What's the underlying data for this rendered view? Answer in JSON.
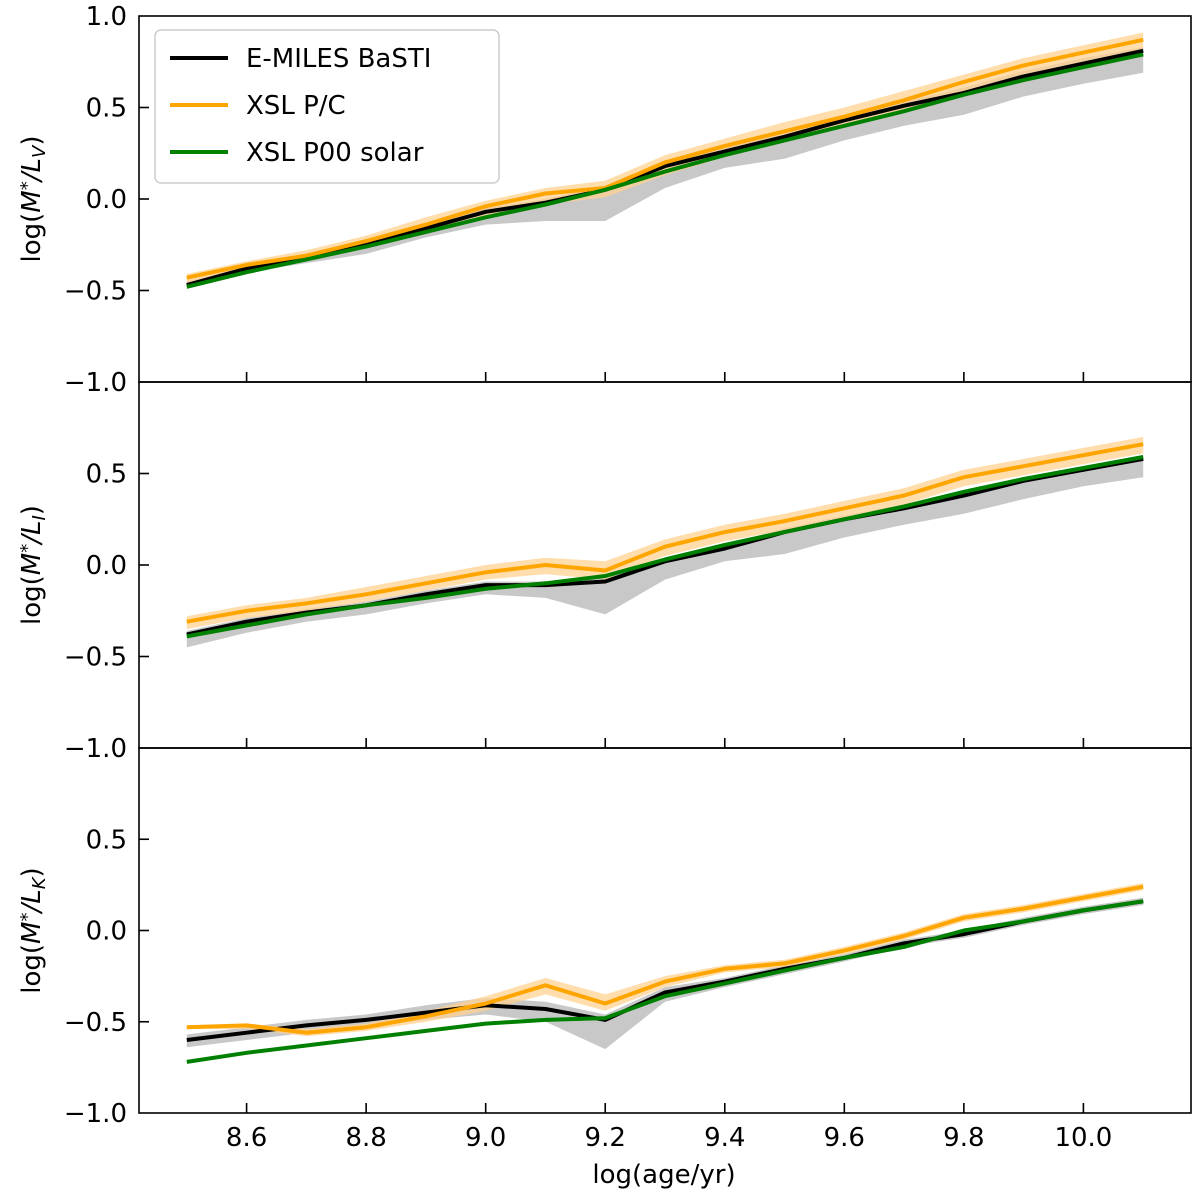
{
  "chart_data": {
    "type": "line",
    "xlabel": "log(age/yr)",
    "x_ticks": [
      "8.6",
      "8.8",
      "9.0",
      "9.2",
      "9.4",
      "9.6",
      "9.8",
      "10.0"
    ],
    "x_tick_values": [
      8.6,
      8.8,
      9.0,
      9.2,
      9.4,
      9.6,
      9.8,
      10.0
    ],
    "xlim": [
      8.42,
      10.18
    ],
    "ylim": [
      -1.0,
      1.0
    ],
    "y_ticks": [
      "1.0",
      "0.5",
      "0.0",
      "−0.5",
      "−1.0"
    ],
    "y_tick_values": [
      1.0,
      0.5,
      0.0,
      -0.5,
      -1.0
    ],
    "grid": false,
    "legend": {
      "placement": "top-left",
      "entries": [
        {
          "label": "E-MILES BaSTI",
          "color": "#000000"
        },
        {
          "label": "XSL P/C",
          "color": "#ffa500"
        },
        {
          "label": "XSL P00 solar",
          "color": "#008000"
        }
      ]
    },
    "x": [
      8.5,
      8.6,
      8.7,
      8.8,
      8.9,
      9.0,
      9.1,
      9.2,
      9.3,
      9.4,
      9.5,
      9.6,
      9.7,
      9.8,
      9.9,
      10.0,
      10.1
    ],
    "panels": [
      {
        "ylabel": "log(M*/L_V)",
        "ylabel_main": "log(",
        "ylabel_M": "M",
        "ylabel_star": "*",
        "ylabel_slash": "/",
        "ylabel_L": "L",
        "ylabel_sub": "V",
        "ylabel_end": ")",
        "show_y_top_tick": true,
        "series": [
          {
            "name": "E-MILES BaSTI",
            "color": "#000000",
            "band_color": "#b0b0b0",
            "values": [
              -0.47,
              -0.38,
              -0.32,
              -0.25,
              -0.16,
              -0.07,
              -0.02,
              0.05,
              0.18,
              0.26,
              0.34,
              0.43,
              0.51,
              0.58,
              0.67,
              0.74,
              0.81
            ],
            "band_lower": [
              -0.49,
              -0.4,
              -0.35,
              -0.3,
              -0.21,
              -0.14,
              -0.12,
              -0.12,
              0.06,
              0.17,
              0.22,
              0.32,
              0.4,
              0.46,
              0.56,
              0.63,
              0.69
            ],
            "band_upper": [
              -0.45,
              -0.37,
              -0.31,
              -0.23,
              -0.14,
              -0.05,
              0.0,
              0.07,
              0.2,
              0.28,
              0.36,
              0.45,
              0.53,
              0.61,
              0.7,
              0.77,
              0.83
            ]
          },
          {
            "name": "XSL P/C",
            "color": "#ffa500",
            "band_color": "#ffd290",
            "values": [
              -0.43,
              -0.36,
              -0.31,
              -0.23,
              -0.14,
              -0.04,
              0.03,
              0.06,
              0.2,
              0.29,
              0.37,
              0.45,
              0.54,
              0.64,
              0.73,
              0.8,
              0.87
            ],
            "band_lower": [
              -0.46,
              -0.39,
              -0.34,
              -0.27,
              -0.18,
              -0.09,
              -0.03,
              0.01,
              0.13,
              0.23,
              0.31,
              0.4,
              0.48,
              0.58,
              0.67,
              0.74,
              0.81
            ],
            "band_upper": [
              -0.41,
              -0.34,
              -0.28,
              -0.2,
              -0.1,
              -0.01,
              0.06,
              0.1,
              0.24,
              0.33,
              0.42,
              0.5,
              0.59,
              0.68,
              0.77,
              0.84,
              0.91
            ]
          },
          {
            "name": "XSL P00 solar",
            "color": "#008000",
            "values": [
              -0.48,
              -0.4,
              -0.33,
              -0.26,
              -0.18,
              -0.1,
              -0.03,
              0.05,
              0.15,
              0.24,
              0.32,
              0.4,
              0.48,
              0.57,
              0.65,
              0.72,
              0.79
            ]
          }
        ]
      },
      {
        "ylabel": "log(M*/L_I)",
        "ylabel_main": "log(",
        "ylabel_M": "M",
        "ylabel_star": "*",
        "ylabel_slash": "/",
        "ylabel_L": "L",
        "ylabel_sub": "I",
        "ylabel_end": ")",
        "show_y_top_tick": false,
        "series": [
          {
            "name": "E-MILES BaSTI",
            "color": "#000000",
            "band_color": "#b0b0b0",
            "values": [
              -0.38,
              -0.31,
              -0.26,
              -0.22,
              -0.16,
              -0.11,
              -0.11,
              -0.09,
              0.02,
              0.09,
              0.18,
              0.25,
              0.31,
              0.38,
              0.46,
              0.52,
              0.58
            ],
            "band_lower": [
              -0.45,
              -0.37,
              -0.31,
              -0.27,
              -0.21,
              -0.16,
              -0.18,
              -0.27,
              -0.08,
              0.02,
              0.06,
              0.15,
              0.22,
              0.28,
              0.36,
              0.43,
              0.48
            ],
            "band_upper": [
              -0.36,
              -0.29,
              -0.24,
              -0.2,
              -0.14,
              -0.09,
              -0.09,
              -0.07,
              0.04,
              0.11,
              0.2,
              0.27,
              0.33,
              0.4,
              0.48,
              0.54,
              0.6
            ]
          },
          {
            "name": "XSL P/C",
            "color": "#ffa500",
            "band_color": "#ffd290",
            "values": [
              -0.31,
              -0.25,
              -0.21,
              -0.16,
              -0.1,
              -0.04,
              0.0,
              -0.03,
              0.1,
              0.18,
              0.24,
              0.31,
              0.38,
              0.48,
              0.54,
              0.6,
              0.66
            ],
            "band_lower": [
              -0.35,
              -0.29,
              -0.25,
              -0.2,
              -0.14,
              -0.08,
              -0.05,
              -0.08,
              0.05,
              0.13,
              0.19,
              0.26,
              0.33,
              0.43,
              0.49,
              0.55,
              0.61
            ],
            "band_upper": [
              -0.28,
              -0.22,
              -0.18,
              -0.12,
              -0.06,
              0.0,
              0.04,
              0.02,
              0.14,
              0.22,
              0.28,
              0.35,
              0.42,
              0.52,
              0.58,
              0.64,
              0.7
            ]
          },
          {
            "name": "XSL P00 solar",
            "color": "#008000",
            "values": [
              -0.39,
              -0.33,
              -0.27,
              -0.22,
              -0.18,
              -0.13,
              -0.1,
              -0.06,
              0.03,
              0.11,
              0.18,
              0.25,
              0.32,
              0.4,
              0.47,
              0.53,
              0.59
            ]
          }
        ]
      },
      {
        "ylabel": "log(M*/L_K)",
        "ylabel_main": "log(",
        "ylabel_M": "M",
        "ylabel_star": "*",
        "ylabel_slash": "/",
        "ylabel_L": "L",
        "ylabel_sub": "K",
        "ylabel_end": ")",
        "show_y_top_tick": false,
        "series": [
          {
            "name": "E-MILES BaSTI",
            "color": "#000000",
            "band_color": "#b0b0b0",
            "values": [
              -0.6,
              -0.56,
              -0.52,
              -0.49,
              -0.45,
              -0.41,
              -0.43,
              -0.49,
              -0.34,
              -0.28,
              -0.21,
              -0.15,
              -0.07,
              -0.02,
              0.05,
              0.11,
              0.16
            ],
            "band_lower": [
              -0.64,
              -0.6,
              -0.56,
              -0.53,
              -0.49,
              -0.46,
              -0.5,
              -0.65,
              -0.39,
              -0.31,
              -0.24,
              -0.17,
              -0.09,
              -0.04,
              0.03,
              0.09,
              0.14
            ],
            "band_upper": [
              -0.57,
              -0.53,
              -0.49,
              -0.46,
              -0.41,
              -0.37,
              -0.39,
              -0.46,
              -0.31,
              -0.26,
              -0.19,
              -0.13,
              -0.05,
              0.0,
              0.07,
              0.13,
              0.18
            ]
          },
          {
            "name": "XSL P/C",
            "color": "#ffa500",
            "band_color": "#ffd290",
            "values": [
              -0.53,
              -0.52,
              -0.56,
              -0.53,
              -0.47,
              -0.4,
              -0.3,
              -0.4,
              -0.28,
              -0.21,
              -0.18,
              -0.11,
              -0.03,
              0.07,
              0.12,
              0.18,
              0.24
            ],
            "band_lower": [
              -0.54,
              -0.54,
              -0.58,
              -0.55,
              -0.5,
              -0.44,
              -0.35,
              -0.44,
              -0.31,
              -0.23,
              -0.2,
              -0.13,
              -0.05,
              0.05,
              0.1,
              0.16,
              0.22
            ],
            "band_upper": [
              -0.52,
              -0.51,
              -0.54,
              -0.51,
              -0.44,
              -0.36,
              -0.26,
              -0.35,
              -0.25,
              -0.19,
              -0.16,
              -0.09,
              -0.01,
              0.09,
              0.14,
              0.2,
              0.26
            ]
          },
          {
            "name": "XSL P00 solar",
            "color": "#008000",
            "values": [
              -0.72,
              -0.67,
              -0.63,
              -0.59,
              -0.55,
              -0.51,
              -0.49,
              -0.48,
              -0.36,
              -0.29,
              -0.22,
              -0.15,
              -0.09,
              0.0,
              0.05,
              0.11,
              0.16
            ]
          }
        ]
      }
    ]
  }
}
